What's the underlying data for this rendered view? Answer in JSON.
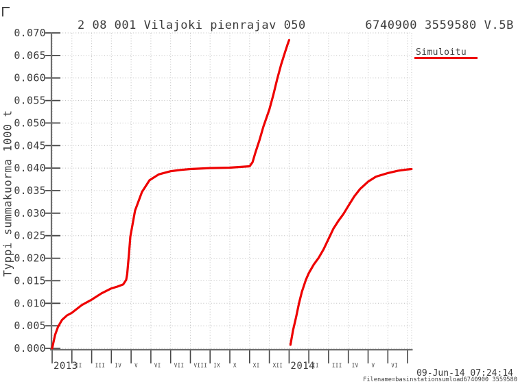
{
  "window": {
    "background": "#ffffff"
  },
  "colors": {
    "curve": "#ee0000",
    "axis": "#6e6e6e",
    "tick": "#454545",
    "grid": "#bcbcbc",
    "text": "#3d3d3d"
  },
  "footer": {
    "timestamp": "09-Jun-14 07:24:14",
    "filename": "Filename=basinstationsumload6740900 3559580"
  },
  "chart_data": {
    "type": "line",
    "title": "2 08 001 Vilajoki pienrajav 050",
    "title_right": "6740900 3559580 V.5B",
    "ylabel": "Typpi summakuorma 1000 t",
    "xlabel": "",
    "ylim": [
      0,
      0.07
    ],
    "grid": true,
    "legend_position": "top-right",
    "x_unit": "months, 0 = January 2013",
    "y_tick_values": [
      0,
      0.005,
      0.01,
      0.015,
      0.02,
      0.025,
      0.03,
      0.035,
      0.04,
      0.045,
      0.05,
      0.055,
      0.06,
      0.065,
      0.07
    ],
    "y_tick_labels": [
      "0.000",
      "0.005",
      "0.010",
      "0.015",
      "0.020",
      "0.025",
      "0.030",
      "0.035",
      "0.040",
      "0.045",
      "0.050",
      "0.055",
      "0.060",
      "0.065",
      "0.070"
    ],
    "x_ticks": [
      {
        "month": 0,
        "label": "2013",
        "year": true
      },
      {
        "month": 1,
        "label": "II"
      },
      {
        "month": 2,
        "label": "III"
      },
      {
        "month": 3,
        "label": "IV"
      },
      {
        "month": 4,
        "label": "V"
      },
      {
        "month": 5,
        "label": "VI"
      },
      {
        "month": 6,
        "label": "VII"
      },
      {
        "month": 7,
        "label": "VIII"
      },
      {
        "month": 8,
        "label": "IX"
      },
      {
        "month": 9,
        "label": "X"
      },
      {
        "month": 10,
        "label": "XI"
      },
      {
        "month": 11,
        "label": "XII"
      },
      {
        "month": 12,
        "label": "2014",
        "year": true
      },
      {
        "month": 13,
        "label": "II"
      },
      {
        "month": 14,
        "label": "III"
      },
      {
        "month": 15,
        "label": "IV"
      },
      {
        "month": 16,
        "label": "V"
      },
      {
        "month": 17,
        "label": "VI"
      },
      {
        "month": 18,
        "label": ""
      }
    ],
    "series": [
      {
        "name": "Simuloitu",
        "color": "#ee0000",
        "unit": "1000 t",
        "segments": [
          [
            [
              0,
              0.0
            ],
            [
              0.15,
              0.003
            ],
            [
              0.3,
              0.0048
            ],
            [
              0.5,
              0.0063
            ],
            [
              0.75,
              0.0073
            ],
            [
              1,
              0.0079
            ],
            [
              1.5,
              0.0096
            ],
            [
              2,
              0.0108
            ],
            [
              2.5,
              0.0122
            ],
            [
              3,
              0.0133
            ],
            [
              3.3,
              0.0137
            ],
            [
              3.6,
              0.0142
            ],
            [
              3.75,
              0.0152
            ],
            [
              3.8,
              0.0165
            ],
            [
              3.89,
              0.021
            ],
            [
              3.96,
              0.0248
            ],
            [
              4.2,
              0.0306
            ],
            [
              4.55,
              0.0347
            ],
            [
              4.93,
              0.0373
            ],
            [
              5.4,
              0.0386
            ],
            [
              6,
              0.0393
            ],
            [
              6.5,
              0.0396
            ],
            [
              7,
              0.0398
            ],
            [
              8,
              0.04
            ],
            [
              9,
              0.0401
            ],
            [
              10,
              0.0404
            ],
            [
              10.15,
              0.0413
            ],
            [
              10.3,
              0.0435
            ],
            [
              10.5,
              0.0462
            ],
            [
              10.7,
              0.0492
            ],
            [
              11,
              0.053
            ],
            [
              11.2,
              0.0562
            ],
            [
              11.4,
              0.0598
            ],
            [
              11.6,
              0.063
            ],
            [
              11.8,
              0.0658
            ],
            [
              11.95,
              0.0678
            ],
            [
              12,
              0.0684
            ]
          ],
          [
            [
              12.07,
              0.0008
            ],
            [
              12.2,
              0.004
            ],
            [
              12.35,
              0.0068
            ],
            [
              12.5,
              0.01
            ],
            [
              12.65,
              0.0126
            ],
            [
              12.85,
              0.0152
            ],
            [
              13,
              0.0167
            ],
            [
              13.25,
              0.0186
            ],
            [
              13.5,
              0.0201
            ],
            [
              13.75,
              0.022
            ],
            [
              14,
              0.0243
            ],
            [
              14.25,
              0.0266
            ],
            [
              14.5,
              0.0283
            ],
            [
              14.75,
              0.0298
            ],
            [
              15,
              0.0316
            ],
            [
              15.3,
              0.0337
            ],
            [
              15.6,
              0.0354
            ],
            [
              16,
              0.037
            ],
            [
              16.4,
              0.0381
            ],
            [
              17,
              0.0389
            ],
            [
              17.5,
              0.0394
            ],
            [
              18,
              0.0397
            ],
            [
              18.2,
              0.0398
            ]
          ]
        ]
      }
    ]
  }
}
